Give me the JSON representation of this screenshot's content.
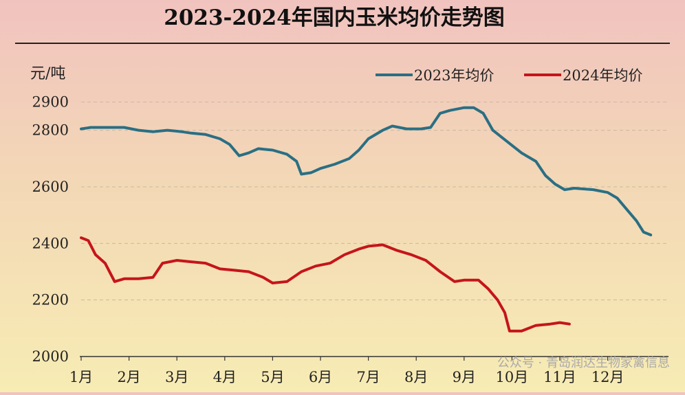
{
  "watermark": "公众号 · 青岛润达生物家禽信息",
  "chart_data": {
    "type": "line",
    "title": "2023-2024年国内玉米均价走势图",
    "ylabel": "元/吨",
    "xlabel": "",
    "ylim": [
      2000,
      2940
    ],
    "y_ticks": [
      2000,
      2200,
      2400,
      2600,
      2800,
      2900
    ],
    "x_ticks": [
      "1月",
      "2月",
      "3月",
      "4月",
      "5月",
      "6月",
      "7月",
      "8月",
      "9月",
      "10月",
      "11月",
      "12月"
    ],
    "xlim": [
      1,
      12.75
    ],
    "grid": true,
    "legend_position": "top-right",
    "series": [
      {
        "name": "2023年均价",
        "color": "#2a6f84",
        "points": [
          [
            1.0,
            2805
          ],
          [
            1.2,
            2810
          ],
          [
            1.5,
            2810
          ],
          [
            1.9,
            2810
          ],
          [
            2.2,
            2800
          ],
          [
            2.5,
            2795
          ],
          [
            2.8,
            2800
          ],
          [
            3.1,
            2795
          ],
          [
            3.3,
            2790
          ],
          [
            3.6,
            2785
          ],
          [
            3.9,
            2770
          ],
          [
            4.1,
            2750
          ],
          [
            4.3,
            2710
          ],
          [
            4.5,
            2720
          ],
          [
            4.7,
            2735
          ],
          [
            5.0,
            2730
          ],
          [
            5.3,
            2715
          ],
          [
            5.5,
            2690
          ],
          [
            5.6,
            2645
          ],
          [
            5.8,
            2650
          ],
          [
            6.0,
            2665
          ],
          [
            6.3,
            2680
          ],
          [
            6.6,
            2700
          ],
          [
            6.8,
            2730
          ],
          [
            7.0,
            2770
          ],
          [
            7.3,
            2800
          ],
          [
            7.5,
            2815
          ],
          [
            7.8,
            2805
          ],
          [
            8.1,
            2805
          ],
          [
            8.3,
            2810
          ],
          [
            8.5,
            2860
          ],
          [
            8.7,
            2870
          ],
          [
            9.0,
            2880
          ],
          [
            9.2,
            2880
          ],
          [
            9.4,
            2860
          ],
          [
            9.6,
            2800
          ],
          [
            9.9,
            2760
          ],
          [
            10.2,
            2720
          ],
          [
            10.5,
            2690
          ],
          [
            10.7,
            2640
          ],
          [
            10.9,
            2610
          ],
          [
            11.1,
            2590
          ],
          [
            11.3,
            2595
          ],
          [
            11.7,
            2590
          ],
          [
            12.0,
            2580
          ],
          [
            12.2,
            2560
          ],
          [
            12.4,
            2520
          ],
          [
            12.6,
            2480
          ],
          [
            12.75,
            2440
          ],
          [
            12.9,
            2430
          ]
        ]
      },
      {
        "name": "2024年均价",
        "color": "#c5151a",
        "points": [
          [
            1.0,
            2420
          ],
          [
            1.15,
            2410
          ],
          [
            1.3,
            2360
          ],
          [
            1.5,
            2330
          ],
          [
            1.7,
            2265
          ],
          [
            1.9,
            2275
          ],
          [
            2.2,
            2275
          ],
          [
            2.5,
            2280
          ],
          [
            2.7,
            2330
          ],
          [
            3.0,
            2340
          ],
          [
            3.3,
            2335
          ],
          [
            3.6,
            2330
          ],
          [
            3.9,
            2310
          ],
          [
            4.2,
            2305
          ],
          [
            4.5,
            2300
          ],
          [
            4.8,
            2280
          ],
          [
            5.0,
            2260
          ],
          [
            5.3,
            2265
          ],
          [
            5.6,
            2300
          ],
          [
            5.9,
            2320
          ],
          [
            6.2,
            2330
          ],
          [
            6.5,
            2360
          ],
          [
            6.8,
            2380
          ],
          [
            7.0,
            2390
          ],
          [
            7.3,
            2395
          ],
          [
            7.6,
            2375
          ],
          [
            7.9,
            2360
          ],
          [
            8.2,
            2340
          ],
          [
            8.5,
            2300
          ],
          [
            8.8,
            2265
          ],
          [
            9.0,
            2270
          ],
          [
            9.3,
            2270
          ],
          [
            9.5,
            2240
          ],
          [
            9.7,
            2200
          ],
          [
            9.85,
            2155
          ],
          [
            9.95,
            2090
          ],
          [
            10.2,
            2090
          ],
          [
            10.5,
            2110
          ],
          [
            10.8,
            2115
          ],
          [
            11.0,
            2120
          ],
          [
            11.2,
            2115
          ]
        ]
      }
    ]
  }
}
